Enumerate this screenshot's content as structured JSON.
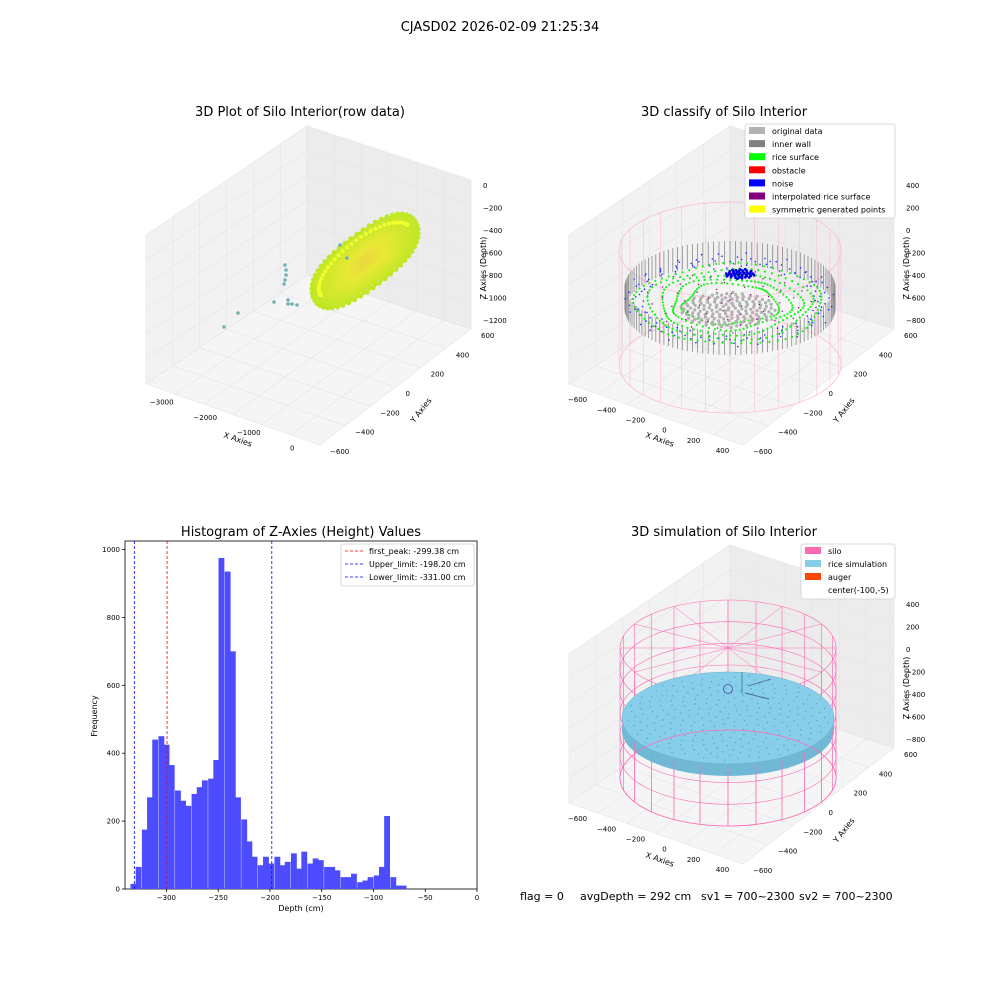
{
  "suptitle": "CJASD02 2026-02-09 21:25:34",
  "colors": {
    "histogram_bar": "#4d4dff",
    "first_peak_line": "#ff0000",
    "limit_lines": "#0000ff",
    "silo_wire": "#ff69b4",
    "rice_simulation": "#87ceeb",
    "auger": "#ff4500"
  },
  "panels": {
    "raw": {
      "title": "3D Plot of Silo Interior(row data)",
      "xlabel": "X Axies",
      "ylabel": "Y Axies",
      "zlabel": "Z Axies (Depth)",
      "x_ticks": [
        "−3000",
        "−2000",
        "−1000",
        "0"
      ],
      "y_ticks": [
        "600",
        "400",
        "200",
        "0",
        "−200",
        "−400",
        "−600"
      ],
      "z_ticks": [
        "0",
        "−200",
        "−400",
        "−600",
        "−800",
        "−1000",
        "−1200"
      ]
    },
    "classify": {
      "title": "3D classify of Silo Interior",
      "xlabel": "X Axies",
      "ylabel": "Y Axies",
      "zlabel": "Z Axies (Depth)",
      "x_ticks": [
        "−600",
        "−400",
        "−200",
        "0",
        "200",
        "400"
      ],
      "y_ticks": [
        "600",
        "400",
        "200",
        "0",
        "−200",
        "−400",
        "−600"
      ],
      "z_ticks": [
        "400",
        "200",
        "0",
        "−200",
        "−400",
        "−600",
        "−800"
      ],
      "legend": [
        {
          "label": "original data",
          "color": "#b3b3b3"
        },
        {
          "label": "inner wall",
          "color": "#808080"
        },
        {
          "label": "rice surface",
          "color": "#00ff00"
        },
        {
          "label": "obstacle",
          "color": "#ff0000"
        },
        {
          "label": "noise",
          "color": "#0000ff"
        },
        {
          "label": "interpolated rice surface",
          "color": "#800080"
        },
        {
          "label": "symmetric generated points",
          "color": "#ffff00"
        }
      ]
    },
    "simulation": {
      "title": "3D simulation of Silo Interior",
      "xlabel": "X Axies",
      "ylabel": "Y Axies",
      "zlabel": "Z Axies (Depth)",
      "x_ticks": [
        "−600",
        "−400",
        "−200",
        "0",
        "200",
        "400"
      ],
      "y_ticks": [
        "600",
        "400",
        "200",
        "0",
        "−200",
        "−400",
        "−600"
      ],
      "z_ticks": [
        "400",
        "200",
        "0",
        "−200",
        "−400",
        "−600",
        "−800"
      ],
      "legend": [
        {
          "label": "silo",
          "color": "#ff69b4"
        },
        {
          "label": "rice simulation",
          "color": "#87ceeb"
        },
        {
          "label": "auger",
          "color": "#ff4500"
        },
        {
          "label": "center(-100,-5)",
          "color": ""
        }
      ]
    }
  },
  "status": {
    "flag": "flag = 0",
    "avg_depth": "avgDepth = 292 cm",
    "sv1": "sv1 = 700~2300",
    "sv2": "sv2 = 700~2300"
  },
  "chart_data": [
    {
      "type": "scatter",
      "title": "3D Plot of Silo Interior(row data)",
      "xlabel": "X Axies",
      "ylabel": "Y Axies",
      "zlabel": "Z Axies (Depth)",
      "xlim": [
        -3500,
        500
      ],
      "ylim": [
        -600,
        600
      ],
      "zlim": [
        -1300,
        0
      ],
      "grid": true
    },
    {
      "type": "scatter",
      "title": "3D classify of Silo Interior",
      "xlabel": "X Axies",
      "ylabel": "Y Axies",
      "zlabel": "Z Axies (Depth)",
      "xlim": [
        -700,
        500
      ],
      "ylim": [
        -600,
        600
      ],
      "zlim": [
        -900,
        400
      ],
      "legend_position": "top-right",
      "grid": true
    },
    {
      "type": "histogram",
      "title": "Histogram of Z-Axies (Height) Values",
      "xlabel": "Depth (cm)",
      "ylabel": "Frequency",
      "xlim": [
        -340,
        0
      ],
      "ylim": [
        0,
        1025
      ],
      "x_ticks": [
        -300,
        -250,
        -200,
        -150,
        -100,
        -50,
        0
      ],
      "y_ticks": [
        0,
        200,
        400,
        600,
        800,
        1000
      ],
      "bin_width": 5.35,
      "bins": [
        {
          "x": -332,
          "value": 15
        },
        {
          "x": -327,
          "value": 65
        },
        {
          "x": -321,
          "value": 175
        },
        {
          "x": -316,
          "value": 270
        },
        {
          "x": -311,
          "value": 440
        },
        {
          "x": -305,
          "value": 450
        },
        {
          "x": -300,
          "value": 425
        },
        {
          "x": -295,
          "value": 365
        },
        {
          "x": -289,
          "value": 290
        },
        {
          "x": -284,
          "value": 260
        },
        {
          "x": -279,
          "value": 245
        },
        {
          "x": -273,
          "value": 280
        },
        {
          "x": -268,
          "value": 300
        },
        {
          "x": -263,
          "value": 320
        },
        {
          "x": -257,
          "value": 325
        },
        {
          "x": -252,
          "value": 380
        },
        {
          "x": -247,
          "value": 975
        },
        {
          "x": -241,
          "value": 935
        },
        {
          "x": -236,
          "value": 700
        },
        {
          "x": -231,
          "value": 270
        },
        {
          "x": -225,
          "value": 205
        },
        {
          "x": -220,
          "value": 140
        },
        {
          "x": -215,
          "value": 95
        },
        {
          "x": -209,
          "value": 70
        },
        {
          "x": -204,
          "value": 95
        },
        {
          "x": -199,
          "value": 75
        },
        {
          "x": -193,
          "value": 95
        },
        {
          "x": -188,
          "value": 70
        },
        {
          "x": -183,
          "value": 80
        },
        {
          "x": -177,
          "value": 105
        },
        {
          "x": -172,
          "value": 60
        },
        {
          "x": -167,
          "value": 110
        },
        {
          "x": -161,
          "value": 75
        },
        {
          "x": -156,
          "value": 90
        },
        {
          "x": -151,
          "value": 85
        },
        {
          "x": -145,
          "value": 65
        },
        {
          "x": -140,
          "value": 65
        },
        {
          "x": -135,
          "value": 55
        },
        {
          "x": -129,
          "value": 35
        },
        {
          "x": -124,
          "value": 35
        },
        {
          "x": -119,
          "value": 45
        },
        {
          "x": -113,
          "value": 20
        },
        {
          "x": -108,
          "value": 25
        },
        {
          "x": -103,
          "value": 35
        },
        {
          "x": -97,
          "value": 40
        },
        {
          "x": -92,
          "value": 65
        },
        {
          "x": -87,
          "value": 215
        },
        {
          "x": -81,
          "value": 35
        },
        {
          "x": -76,
          "value": 10
        },
        {
          "x": -71,
          "value": 10
        }
      ],
      "vlines": [
        {
          "label": "first_peak: -299.38 cm",
          "x": -299.38,
          "color": "#ff0000",
          "style": "dashed"
        },
        {
          "label": "Upper_limit: -198.20 cm",
          "x": -198.2,
          "color": "#0000ff",
          "style": "dashed"
        },
        {
          "label": "Lower_limit: -331.00 cm",
          "x": -331.0,
          "color": "#0000ff",
          "style": "dashed"
        }
      ],
      "legend_position": "top-right"
    },
    {
      "type": "scatter",
      "title": "3D simulation of Silo Interior",
      "xlabel": "X Axies",
      "ylabel": "Y Axies",
      "zlabel": "Z Axies (Depth)",
      "xlim": [
        -700,
        500
      ],
      "ylim": [
        -600,
        600
      ],
      "zlim": [
        -900,
        400
      ],
      "legend_position": "top-right",
      "grid": true
    }
  ]
}
